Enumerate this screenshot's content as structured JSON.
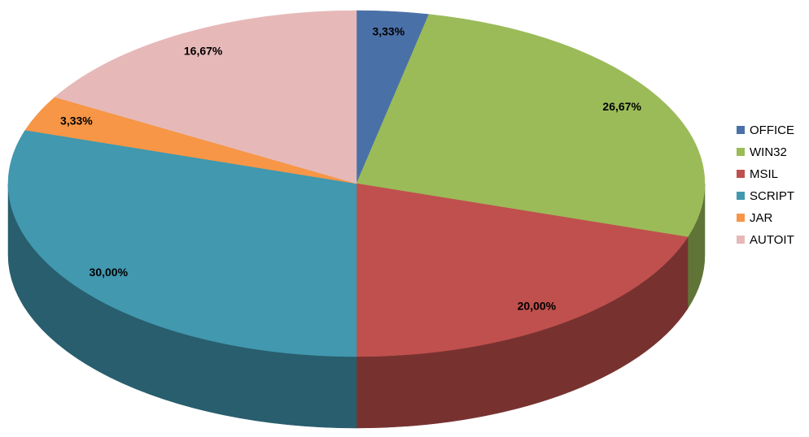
{
  "chart_data": {
    "type": "pie",
    "three_d": true,
    "categories": [
      "OFFICE",
      "WIN32",
      "MSIL",
      "SCRIPT",
      "JAR",
      "AUTOIT"
    ],
    "values": [
      3.33,
      26.67,
      20.0,
      30.0,
      3.33,
      16.67
    ],
    "value_labels": [
      "3,33%",
      "26,67%",
      "20,00%",
      "30,00%",
      "3,33%",
      "16,67%"
    ],
    "colors": [
      "#4a70a8",
      "#9bbb59",
      "#c0504d",
      "#4198af",
      "#f79646",
      "#e6b9b8"
    ],
    "legend": "right"
  }
}
